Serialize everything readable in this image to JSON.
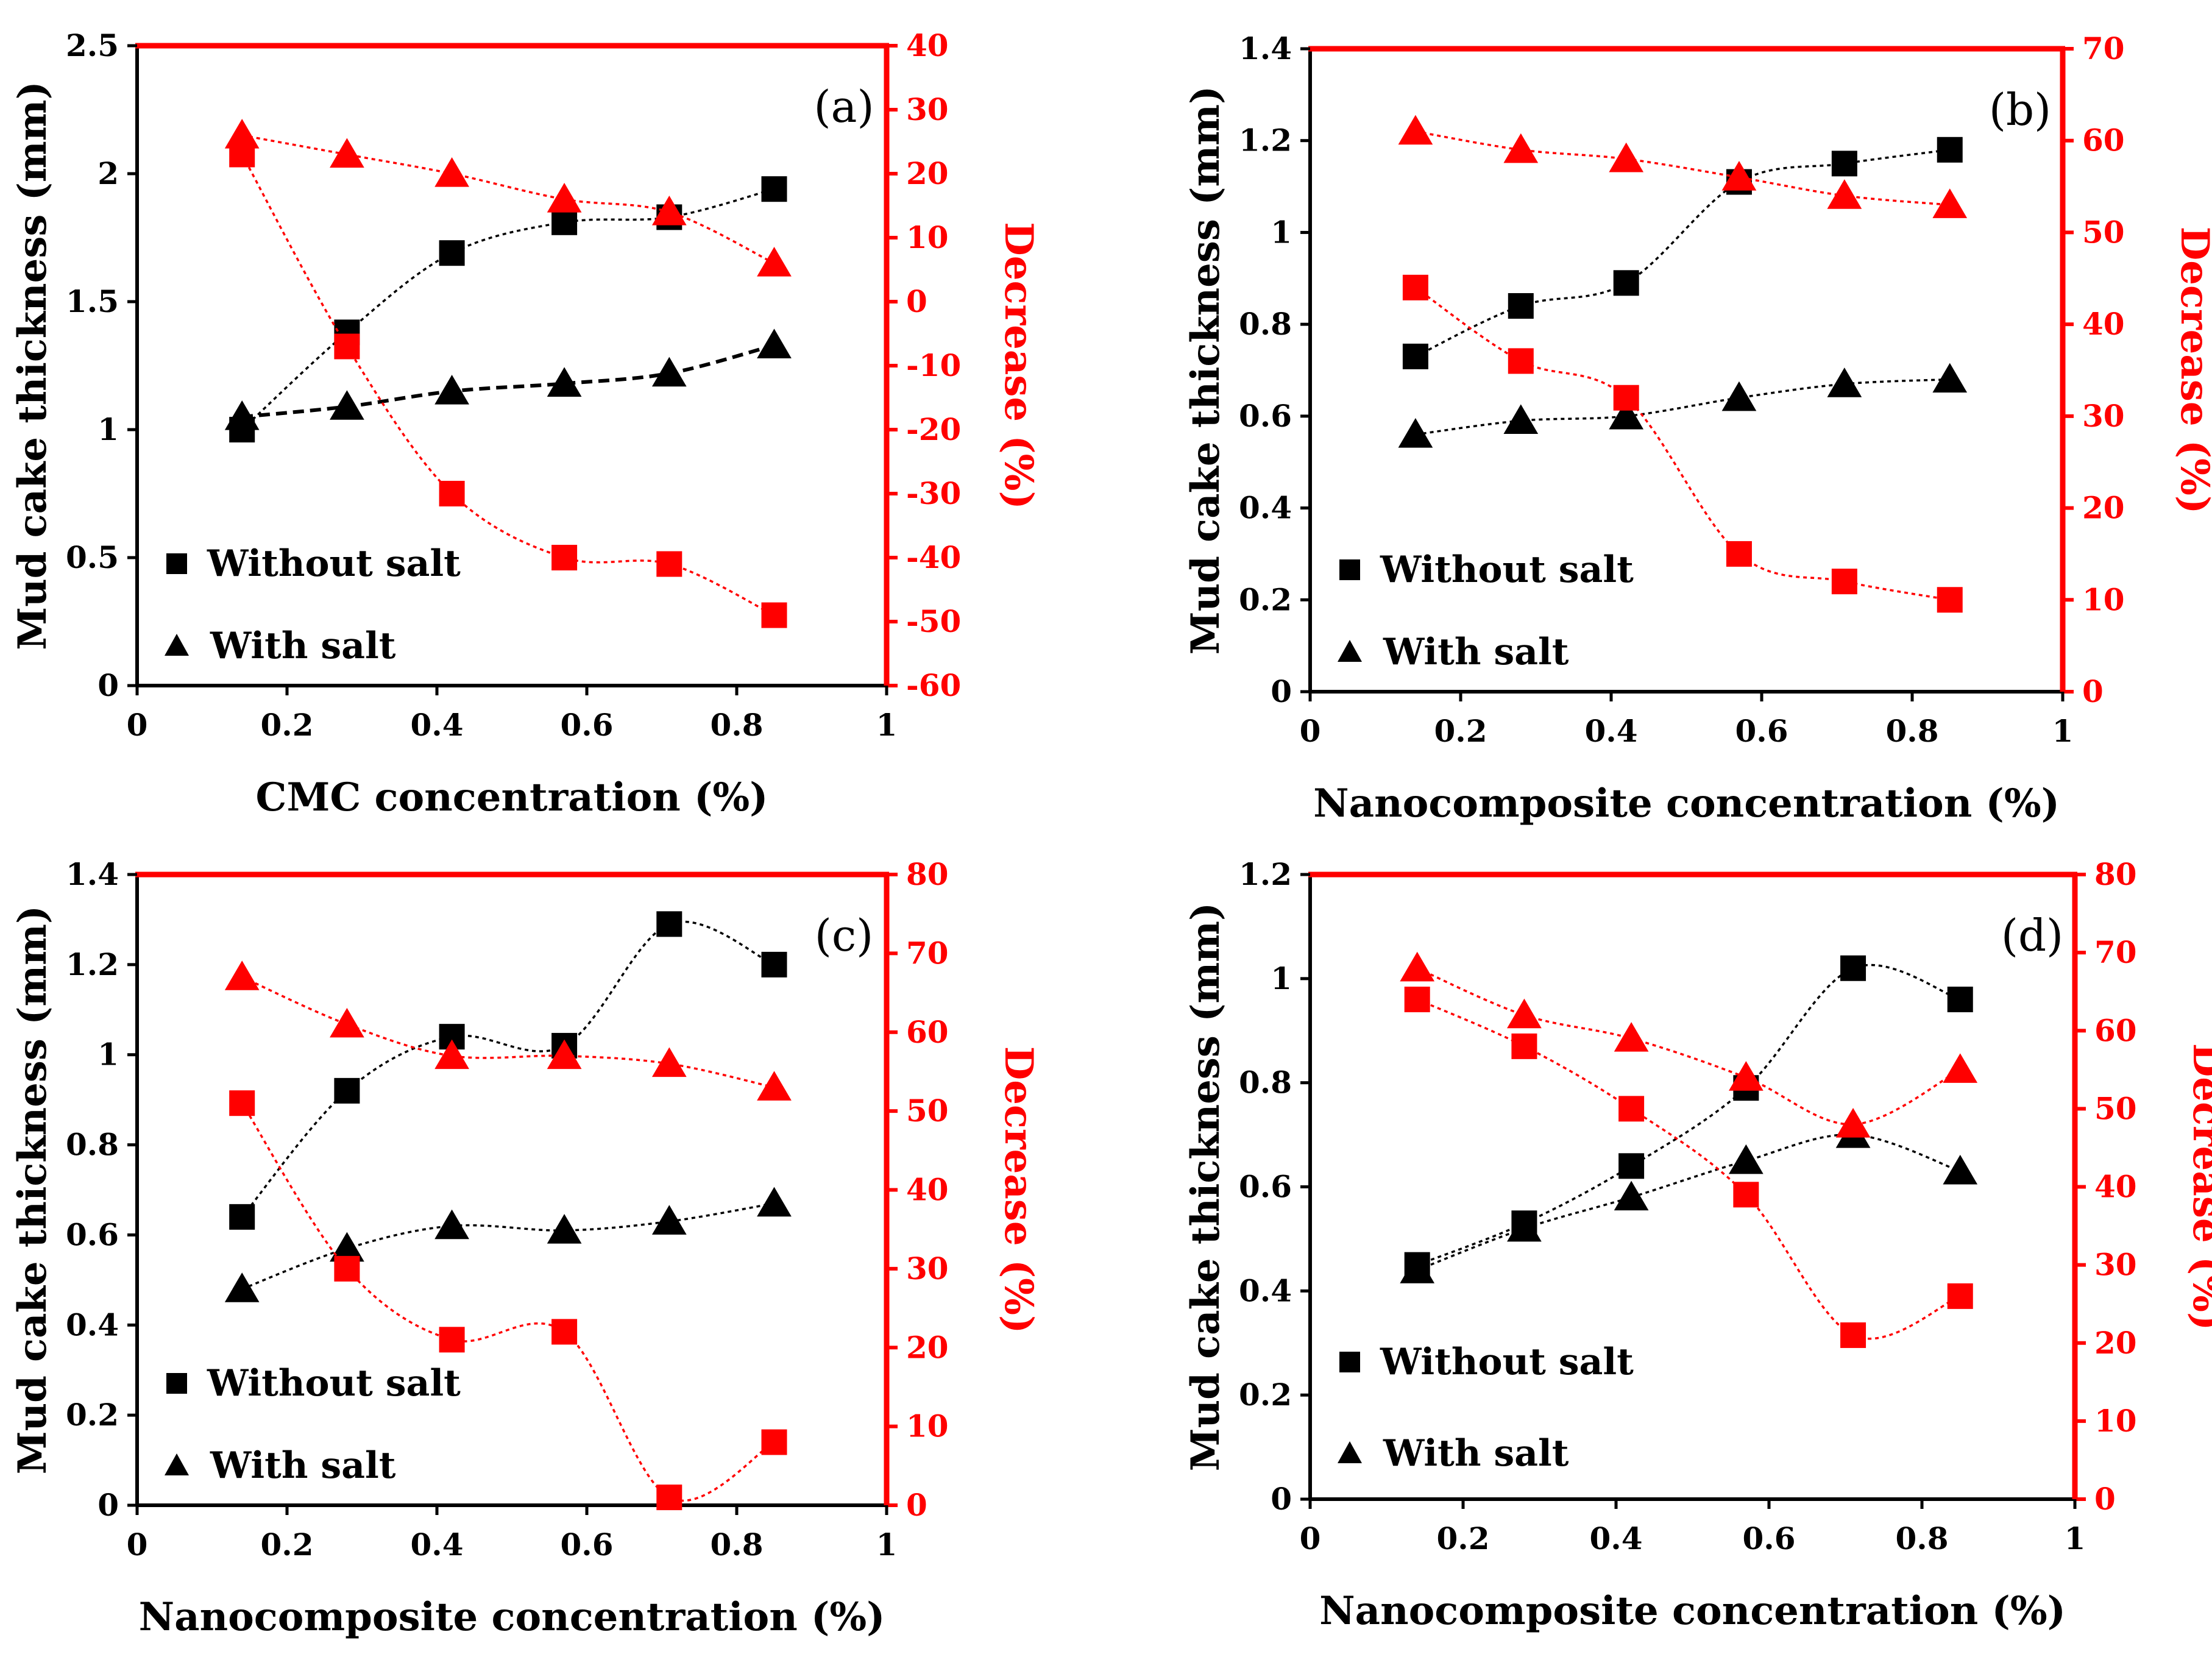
{
  "figure": {
    "legend": {
      "square_label": "Without salt",
      "triangle_label": "With salt"
    },
    "colors": {
      "black_series": "#000000",
      "red_series": "#ff0000",
      "red_axis": "#ff0000"
    }
  },
  "chart_data": [
    {
      "type": "scatter",
      "panel_label": "(a)",
      "xlabel": "CMC concentration (%)",
      "ylabel": "Mud cake thickness (mm)",
      "y2label": "Decrease (%)",
      "xlim": [
        0,
        1
      ],
      "xticks": [
        0,
        0.2,
        0.4,
        0.6,
        0.8,
        1
      ],
      "xtick_labels": [
        "0",
        "0.2",
        "0.4",
        "0.6",
        "0.8",
        "1"
      ],
      "ylim": [
        0,
        2.5
      ],
      "yticks": [
        0,
        0.5,
        1,
        1.5,
        2,
        2.5
      ],
      "ytick_labels": [
        "0",
        "0.5",
        "1",
        "1.5",
        "2",
        "2.5"
      ],
      "y2lim": [
        -60,
        40
      ],
      "y2ticks": [
        -60,
        -50,
        -40,
        -30,
        -20,
        -10,
        0,
        10,
        20,
        30,
        40
      ],
      "y2tick_labels": [
        "-60",
        "-50",
        "-40",
        "-30",
        "-20",
        "-10",
        "0",
        "10",
        "20",
        "30",
        "40"
      ],
      "x": [
        0.14,
        0.28,
        0.42,
        0.57,
        0.71,
        0.85
      ],
      "series": [
        {
          "name": "Without salt",
          "axis": "left",
          "marker": "square",
          "color": "black",
          "values": [
            1.0,
            1.38,
            1.69,
            1.81,
            1.83,
            1.94
          ]
        },
        {
          "name": "With salt",
          "axis": "left",
          "marker": "triangle",
          "color": "black",
          "values": [
            1.05,
            1.09,
            1.15,
            1.18,
            1.22,
            1.33
          ]
        },
        {
          "name": "Without salt decrease",
          "axis": "right",
          "marker": "square",
          "color": "red",
          "values": [
            23,
            -7,
            -30,
            -40,
            -41,
            -49
          ]
        },
        {
          "name": "With salt decrease",
          "axis": "right",
          "marker": "triangle",
          "color": "red",
          "values": [
            26,
            23,
            20,
            16,
            14,
            6
          ]
        }
      ]
    },
    {
      "type": "scatter",
      "panel_label": "(b)",
      "xlabel": "Nanocomposite concentration (%)",
      "ylabel": "Mud cake thickness (mm)",
      "y2label": "Decrease (%)",
      "xlim": [
        0,
        1
      ],
      "xticks": [
        0,
        0.2,
        0.4,
        0.6,
        0.8,
        1
      ],
      "xtick_labels": [
        "0",
        "0.2",
        "0.4",
        "0.6",
        "0.8",
        "1"
      ],
      "ylim": [
        0,
        1.4
      ],
      "yticks": [
        0,
        0.2,
        0.4,
        0.6,
        0.8,
        1,
        1.2,
        1.4
      ],
      "ytick_labels": [
        "0",
        "0.2",
        "0.4",
        "0.6",
        "0.8",
        "1",
        "1.2",
        "1.4"
      ],
      "y2lim": [
        0,
        70
      ],
      "y2ticks": [
        0,
        10,
        20,
        30,
        40,
        50,
        60,
        70
      ],
      "y2tick_labels": [
        "0",
        "10",
        "20",
        "30",
        "40",
        "50",
        "60",
        "70"
      ],
      "x": [
        0.14,
        0.28,
        0.42,
        0.57,
        0.71,
        0.85
      ],
      "series": [
        {
          "name": "Without salt",
          "axis": "left",
          "marker": "square",
          "color": "black",
          "values": [
            0.73,
            0.84,
            0.89,
            1.11,
            1.15,
            1.18
          ]
        },
        {
          "name": "With salt",
          "axis": "left",
          "marker": "triangle",
          "color": "black",
          "values": [
            0.56,
            0.59,
            0.6,
            0.64,
            0.67,
            0.68
          ]
        },
        {
          "name": "Without salt decrease",
          "axis": "right",
          "marker": "square",
          "color": "red",
          "values": [
            44,
            36,
            32,
            15,
            12,
            10
          ]
        },
        {
          "name": "With salt decrease",
          "axis": "right",
          "marker": "triangle",
          "color": "red",
          "values": [
            61,
            59,
            58,
            56,
            54,
            53
          ]
        }
      ]
    },
    {
      "type": "scatter",
      "panel_label": "(c)",
      "xlabel": "Nanocomposite concentration (%)",
      "ylabel": "Mud cake thickness (mm)",
      "y2label": "Decrease (%)",
      "xlim": [
        0,
        1
      ],
      "xticks": [
        0,
        0.2,
        0.4,
        0.6,
        0.8,
        1
      ],
      "xtick_labels": [
        "0",
        "0.2",
        "0.4",
        "0.6",
        "0.8",
        "1"
      ],
      "ylim": [
        0,
        1.4
      ],
      "yticks": [
        0,
        0.2,
        0.4,
        0.6,
        0.8,
        1,
        1.2,
        1.4
      ],
      "ytick_labels": [
        "0",
        "0.2",
        "0.4",
        "0.6",
        "0.8",
        "1",
        "1.2",
        "1.4"
      ],
      "y2lim": [
        0,
        80
      ],
      "y2ticks": [
        0,
        10,
        20,
        30,
        40,
        50,
        60,
        70,
        80
      ],
      "y2tick_labels": [
        "0",
        "10",
        "20",
        "30",
        "40",
        "50",
        "60",
        "70",
        "80"
      ],
      "x": [
        0.14,
        0.28,
        0.42,
        0.57,
        0.71,
        0.85
      ],
      "series": [
        {
          "name": "Without salt",
          "axis": "left",
          "marker": "square",
          "color": "black",
          "values": [
            0.64,
            0.92,
            1.04,
            1.02,
            1.29,
            1.2
          ]
        },
        {
          "name": "With salt",
          "axis": "left",
          "marker": "triangle",
          "color": "black",
          "values": [
            0.48,
            0.57,
            0.62,
            0.61,
            0.63,
            0.67
          ]
        },
        {
          "name": "Without salt decrease",
          "axis": "right",
          "marker": "square",
          "color": "red",
          "values": [
            51,
            30,
            21,
            22,
            1,
            8
          ]
        },
        {
          "name": "With salt decrease",
          "axis": "right",
          "marker": "triangle",
          "color": "red",
          "values": [
            67,
            61,
            57,
            57,
            56,
            53
          ]
        }
      ]
    },
    {
      "type": "scatter",
      "panel_label": "(d)",
      "xlabel": "Nanocomposite concentration (%)",
      "ylabel": "Mud cake thickness (mm)",
      "y2label": "Decrease (%)",
      "xlim": [
        0,
        1
      ],
      "xticks": [
        0,
        0.2,
        0.4,
        0.6,
        0.8,
        1
      ],
      "xtick_labels": [
        "0",
        "0.2",
        "0.4",
        "0.6",
        "0.8",
        "1"
      ],
      "ylim": [
        0,
        1.2
      ],
      "yticks": [
        0,
        0.2,
        0.4,
        0.6,
        0.8,
        1,
        1.2
      ],
      "ytick_labels": [
        "0",
        "0.2",
        "0.4",
        "0.6",
        "0.8",
        "1",
        "1.2"
      ],
      "y2lim": [
        0,
        80
      ],
      "y2ticks": [
        0,
        10,
        20,
        30,
        40,
        50,
        60,
        70,
        80
      ],
      "y2tick_labels": [
        "0",
        "10",
        "20",
        "30",
        "40",
        "50",
        "60",
        "70",
        "80"
      ],
      "x": [
        0.14,
        0.28,
        0.42,
        0.57,
        0.71,
        0.85
      ],
      "series": [
        {
          "name": "Without salt",
          "axis": "left",
          "marker": "square",
          "color": "black",
          "values": [
            0.45,
            0.53,
            0.64,
            0.79,
            1.02,
            0.96
          ]
        },
        {
          "name": "With salt",
          "axis": "left",
          "marker": "triangle",
          "color": "black",
          "values": [
            0.44,
            0.52,
            0.58,
            0.65,
            0.7,
            0.63
          ]
        },
        {
          "name": "Without salt decrease",
          "axis": "right",
          "marker": "square",
          "color": "red",
          "values": [
            64,
            58,
            50,
            39,
            21,
            26
          ]
        },
        {
          "name": "With salt decrease",
          "axis": "right",
          "marker": "triangle",
          "color": "red",
          "values": [
            68,
            62,
            59,
            54,
            48,
            55
          ]
        }
      ]
    }
  ]
}
